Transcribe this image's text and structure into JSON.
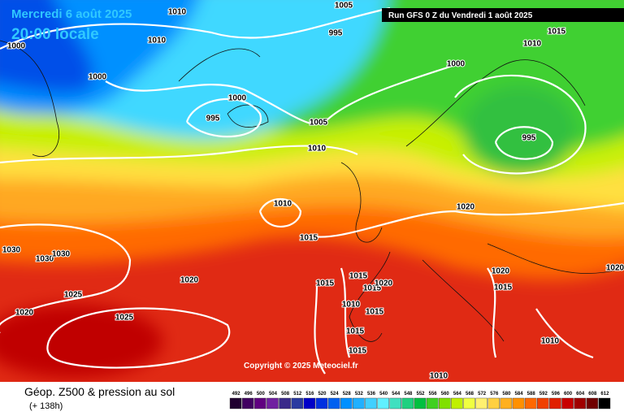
{
  "header": {
    "date": "Mercredi 6 août 2025",
    "time": "20:00 locale",
    "run": "Run GFS 0 Z du Vendredi 1 août 2025"
  },
  "copyright": "Copyright © 2025 Meteociel.fr",
  "footer": {
    "title": "Géop. Z500 & pression au sol",
    "lead": "(+ 138h)"
  },
  "legend": {
    "values": [
      "492",
      "496",
      "500",
      "504",
      "508",
      "512",
      "516",
      "520",
      "524",
      "528",
      "532",
      "536",
      "540",
      "544",
      "548",
      "552",
      "556",
      "560",
      "564",
      "568",
      "572",
      "576",
      "580",
      "584",
      "588",
      "592",
      "596",
      "600",
      "604",
      "608",
      "612"
    ],
    "colors": [
      "#200030",
      "#400060",
      "#600080",
      "#7020a0",
      "#3a2a8a",
      "#2a3aa0",
      "#0000c8",
      "#0030e0",
      "#0060f0",
      "#0090ff",
      "#20b0ff",
      "#40d0ff",
      "#60f0ff",
      "#40e0c0",
      "#20d080",
      "#00c040",
      "#40d020",
      "#80e000",
      "#c0f000",
      "#f0ff40",
      "#fff070",
      "#ffd040",
      "#ffb020",
      "#ff9000",
      "#ff6800",
      "#f04000",
      "#e02000",
      "#c80000",
      "#a00000",
      "#700000",
      "#000000"
    ]
  },
  "isobar_labels": [
    "1010",
    "1005",
    "995",
    "1010",
    "1000",
    "1000",
    "1000",
    "995",
    "1005",
    "1010",
    "1000",
    "1015",
    "1010",
    "995",
    "1010",
    "1020",
    "1015",
    "1030",
    "1030",
    "1030",
    "1020",
    "1015",
    "1015",
    "1015",
    "1020",
    "1025",
    "1010",
    "1015",
    "1020",
    "1025",
    "1015",
    "1015",
    "1020",
    "1015",
    "1010",
    "1010",
    "1020"
  ]
}
